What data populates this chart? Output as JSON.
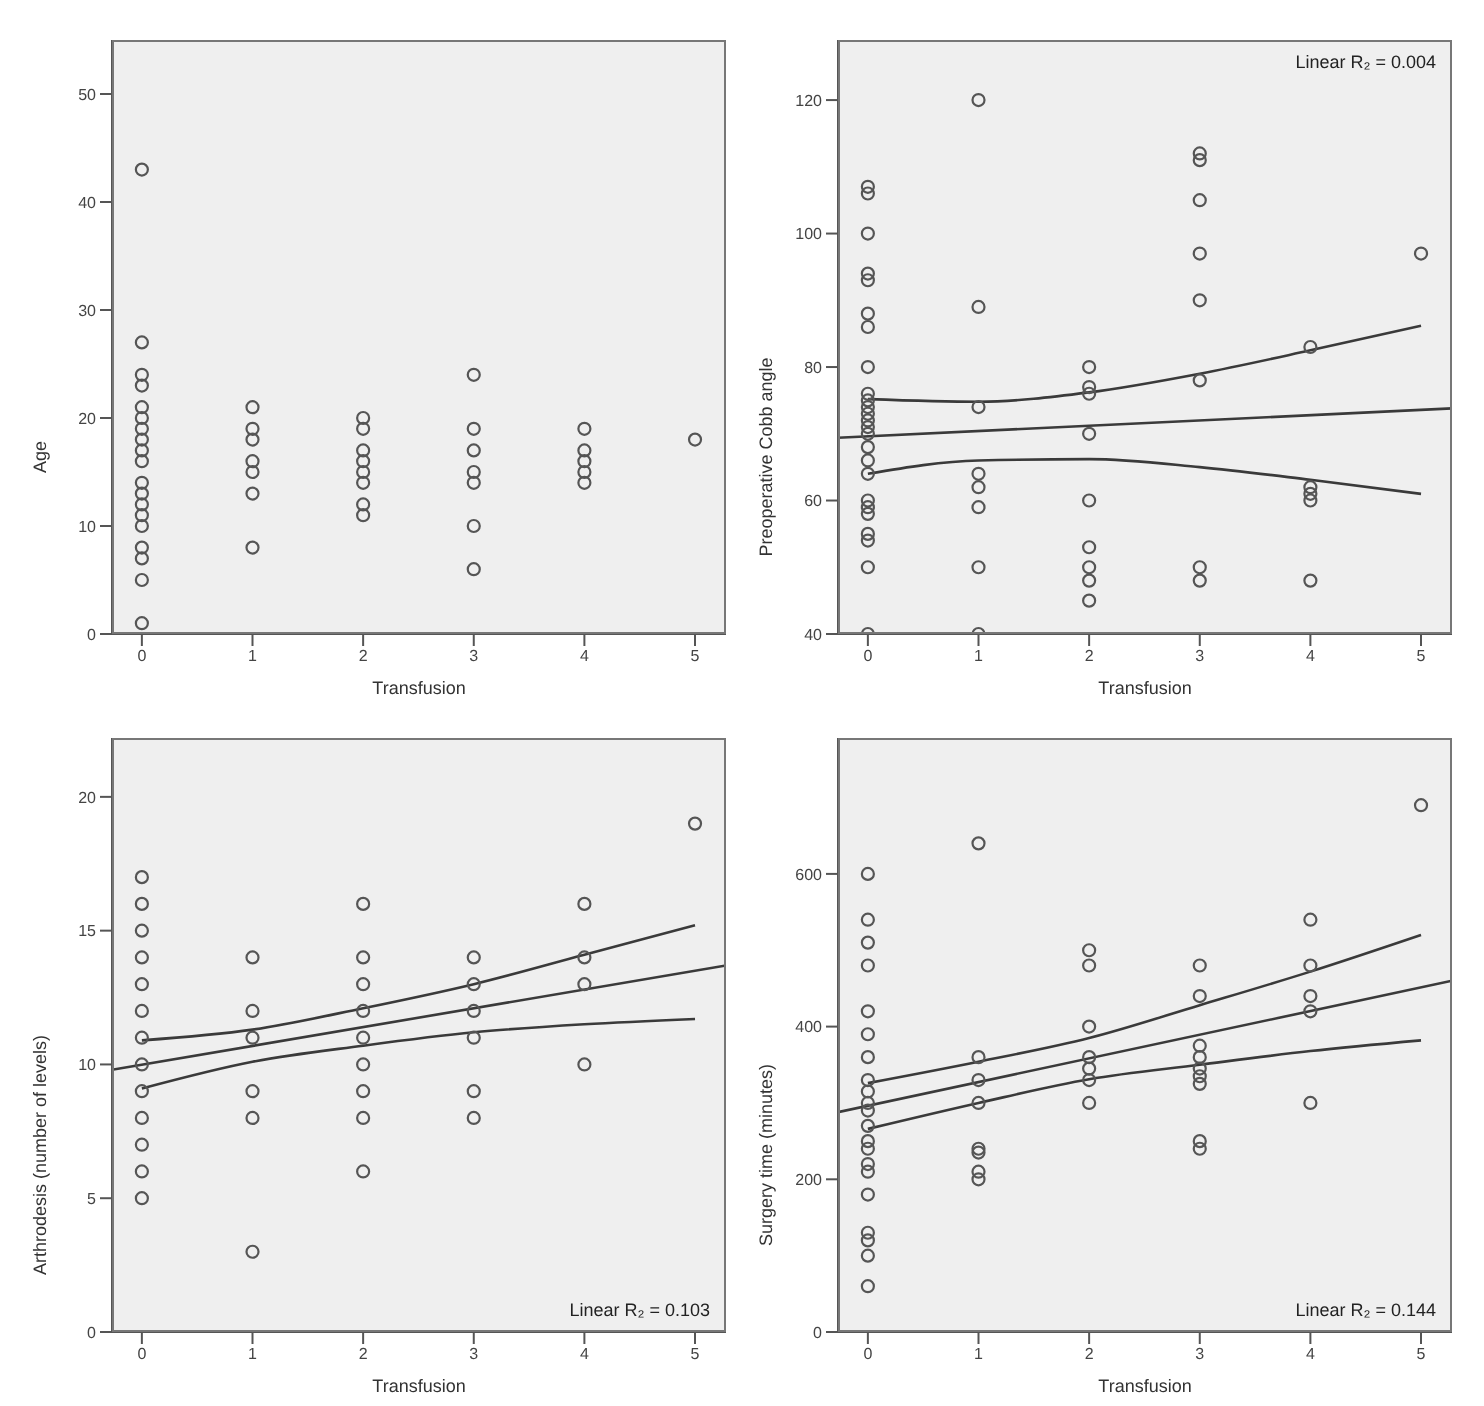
{
  "chart_data": [
    {
      "type": "scatter",
      "xlabel": "Transfusion",
      "ylabel": "Age",
      "xlim": [
        -0.27,
        5.28
      ],
      "xticks": [
        0,
        1,
        2,
        3,
        4,
        5
      ],
      "ylim": [
        0,
        55
      ],
      "yticks": [
        0,
        10,
        20,
        30,
        40,
        50
      ],
      "grid": false,
      "series": [
        {
          "color": "#555555",
          "marker": "circle",
          "x": [
            0,
            0,
            0,
            0,
            0,
            0,
            0,
            0,
            0,
            0,
            0,
            0,
            0,
            0,
            0,
            0,
            0,
            0,
            0,
            1,
            1,
            1,
            1,
            1,
            1,
            1,
            2,
            2,
            2,
            2,
            2,
            2,
            2,
            2,
            3,
            3,
            3,
            3,
            3,
            3,
            3,
            4,
            4,
            4,
            4,
            4,
            5
          ],
          "values": [
            43,
            27,
            24,
            23,
            21,
            20,
            19,
            18,
            17,
            16,
            14,
            13,
            12,
            11,
            10,
            8,
            7,
            5,
            1,
            21,
            19,
            18,
            16,
            15,
            13,
            8,
            20,
            19,
            17,
            16,
            15,
            14,
            12,
            11,
            24,
            19,
            17,
            15,
            14,
            10,
            6,
            19,
            17,
            16,
            15,
            14,
            18
          ]
        }
      ]
    },
    {
      "type": "scatter",
      "xlabel": "Transfusion",
      "ylabel": "Preoperative Cobb angle",
      "xlim": [
        -0.27,
        5.28
      ],
      "xticks": [
        0,
        1,
        2,
        3,
        4,
        5
      ],
      "ylim": [
        40,
        129
      ],
      "yticks": [
        40,
        60,
        80,
        100,
        120
      ],
      "grid": false,
      "annotations": [
        "Linear R₂ = 0.004"
      ],
      "series": [
        {
          "color": "#555555",
          "marker": "circle",
          "x": [
            0,
            0,
            0,
            0,
            0,
            0,
            0,
            0,
            0,
            0,
            0,
            0,
            0,
            0,
            0,
            0,
            0,
            0,
            0,
            0,
            0,
            0,
            0,
            0,
            0,
            1,
            1,
            1,
            1,
            1,
            1,
            1,
            1,
            2,
            2,
            2,
            2,
            2,
            2,
            2,
            2,
            2,
            3,
            3,
            3,
            3,
            3,
            3,
            3,
            3,
            4,
            4,
            4,
            4,
            4,
            5
          ],
          "values": [
            107,
            106,
            100,
            94,
            93,
            88,
            86,
            80,
            76,
            75,
            74,
            73,
            72,
            71,
            70,
            68,
            66,
            64,
            60,
            59,
            58,
            55,
            54,
            50,
            40,
            120,
            89,
            74,
            64,
            62,
            59,
            50,
            40,
            80,
            77,
            76,
            70,
            60,
            53,
            50,
            48,
            45,
            112,
            111,
            105,
            97,
            90,
            78,
            50,
            48,
            83,
            62,
            61,
            60,
            48,
            97
          ]
        },
        {
          "type": "line",
          "color": "#3a3a3a",
          "x": [
            -0.27,
            5.28
          ],
          "values": [
            69.4,
            73.8
          ]
        },
        {
          "type": "line",
          "color": "#3a3a3a",
          "x": [
            0,
            1,
            2,
            3,
            4,
            5
          ],
          "values": [
            75.2,
            74.8,
            76.2,
            79,
            82.5,
            86.2
          ]
        },
        {
          "type": "line",
          "color": "#3a3a3a",
          "x": [
            0,
            1,
            2,
            3,
            4,
            5
          ],
          "values": [
            64,
            66,
            66.2,
            65,
            63.1,
            61
          ]
        }
      ]
    },
    {
      "type": "scatter",
      "xlabel": "Transfusion",
      "ylabel": "Arthrodesis (number of levels)",
      "xlim": [
        -0.27,
        5.28
      ],
      "xticks": [
        0,
        1,
        2,
        3,
        4,
        5
      ],
      "ylim": [
        0,
        22.2
      ],
      "yticks": [
        0,
        5,
        10,
        15,
        20
      ],
      "grid": false,
      "annotations": [
        "Linear R₂ = 0.103"
      ],
      "series": [
        {
          "color": "#555555",
          "marker": "circle",
          "x": [
            0,
            0,
            0,
            0,
            0,
            0,
            0,
            0,
            0,
            0,
            0,
            0,
            0,
            1,
            1,
            1,
            1,
            1,
            1,
            2,
            2,
            2,
            2,
            2,
            2,
            2,
            2,
            2,
            3,
            3,
            3,
            3,
            3,
            3,
            4,
            4,
            4,
            4,
            5
          ],
          "values": [
            17,
            16,
            15,
            14,
            13,
            12,
            11,
            10,
            9,
            8,
            7,
            6,
            5,
            14,
            12,
            11,
            9,
            8,
            3,
            16,
            14,
            13,
            12,
            11,
            10,
            9,
            8,
            6,
            14,
            13,
            12,
            11,
            9,
            8,
            16,
            14,
            13,
            10,
            19
          ]
        },
        {
          "type": "line",
          "color": "#3a3a3a",
          "x": [
            -0.27,
            5.28
          ],
          "values": [
            9.8,
            13.7
          ]
        },
        {
          "type": "line",
          "color": "#3a3a3a",
          "x": [
            0,
            1,
            2,
            3,
            4,
            5
          ],
          "values": [
            10.9,
            11.3,
            12.1,
            13,
            14.1,
            15.2
          ]
        },
        {
          "type": "line",
          "color": "#3a3a3a",
          "x": [
            0,
            1,
            2,
            3,
            4,
            5
          ],
          "values": [
            9.1,
            10.1,
            10.7,
            11.2,
            11.5,
            11.7
          ]
        }
      ]
    },
    {
      "type": "scatter",
      "xlabel": "Transfusion",
      "ylabel": "Surgery time (minutes)",
      "xlim": [
        -0.27,
        5.28
      ],
      "xticks": [
        0,
        1,
        2,
        3,
        4,
        5
      ],
      "ylim": [
        0,
        778
      ],
      "yticks": [
        0,
        200,
        400,
        600
      ],
      "grid": false,
      "annotations": [
        "Linear R₂ = 0.144"
      ],
      "series": [
        {
          "color": "#555555",
          "marker": "circle",
          "x": [
            0,
            0,
            0,
            0,
            0,
            0,
            0,
            0,
            0,
            0,
            0,
            0,
            0,
            0,
            0,
            0,
            0,
            0,
            0,
            0,
            0,
            1,
            1,
            1,
            1,
            1,
            1,
            1,
            1,
            2,
            2,
            2,
            2,
            2,
            2,
            2,
            3,
            3,
            3,
            3,
            3,
            3,
            3,
            3,
            3,
            4,
            4,
            4,
            4,
            4,
            5
          ],
          "values": [
            600,
            540,
            510,
            480,
            420,
            390,
            360,
            330,
            315,
            300,
            290,
            270,
            250,
            240,
            220,
            210,
            180,
            130,
            120,
            100,
            60,
            640,
            360,
            330,
            300,
            240,
            235,
            210,
            200,
            500,
            480,
            400,
            360,
            345,
            330,
            300,
            480,
            440,
            375,
            360,
            345,
            335,
            325,
            250,
            240,
            540,
            480,
            440,
            420,
            300,
            690
          ]
        },
        {
          "type": "line",
          "color": "#3a3a3a",
          "x": [
            -0.27,
            5.28
          ],
          "values": [
            288,
            460
          ]
        },
        {
          "type": "line",
          "color": "#3a3a3a",
          "x": [
            0,
            1,
            2,
            3,
            4,
            5
          ],
          "values": [
            326,
            354,
            385,
            428,
            472,
            520
          ]
        },
        {
          "type": "line",
          "color": "#3a3a3a",
          "x": [
            0,
            1,
            2,
            3,
            4,
            5
          ],
          "values": [
            266,
            300,
            331,
            350,
            368,
            382
          ]
        }
      ]
    }
  ]
}
